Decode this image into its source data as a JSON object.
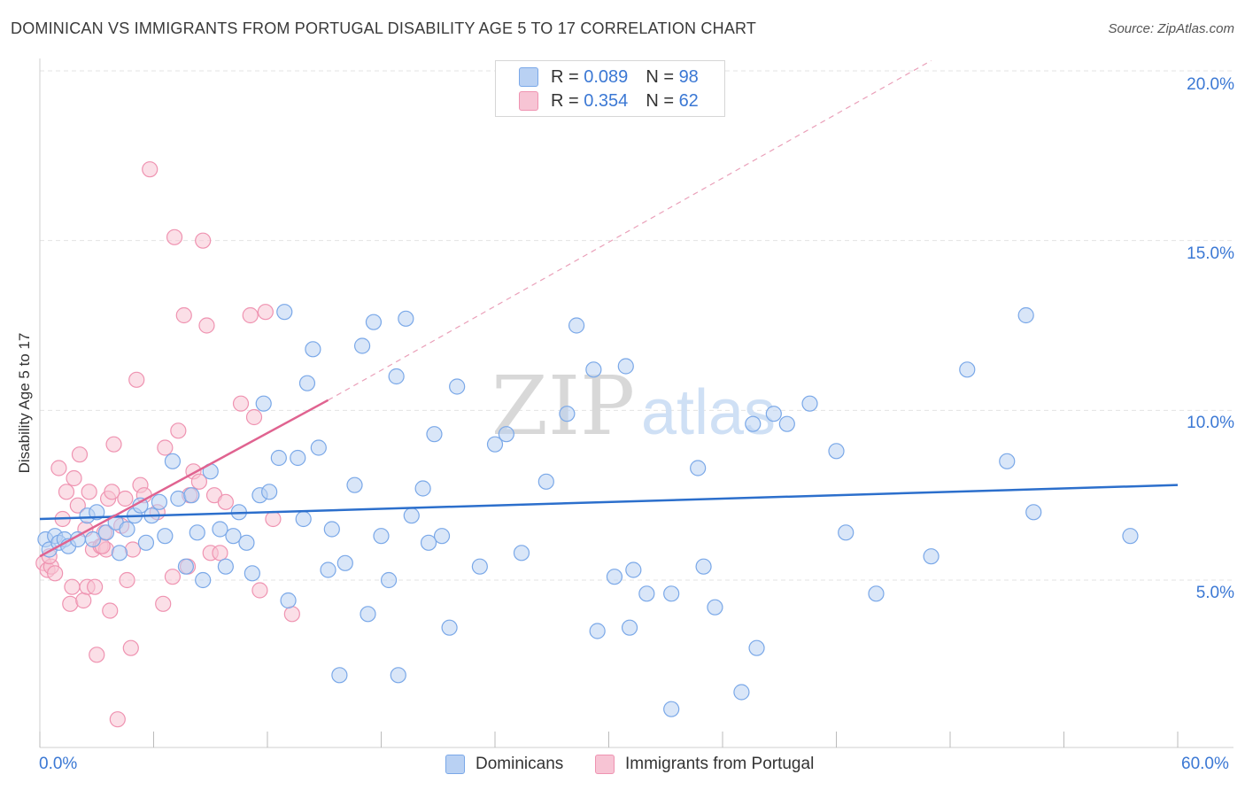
{
  "title": "DOMINICAN VS IMMIGRANTS FROM PORTUGAL DISABILITY AGE 5 TO 17 CORRELATION CHART",
  "source": "Source: ZipAtlas.com",
  "legend_top": {
    "r_label": "R =",
    "n_label": "N =",
    "series1_r": "0.089",
    "series1_n": "98",
    "series2_r": "0.354",
    "series2_n": "62"
  },
  "legend_bottom": {
    "series1": "Dominicans",
    "series2": "Immigrants from Portugal"
  },
  "axes": {
    "ylabel": "Disability Age 5 to 17",
    "y_ticks": [
      "5.0%",
      "10.0%",
      "15.0%",
      "20.0%"
    ],
    "x_min_label": "0.0%",
    "x_max_label": "60.0%"
  },
  "colors": {
    "blue": "#7aa8e8",
    "blue_fill": "#b9d1f3",
    "blue_line": "#2c6fcc",
    "pink": "#ef93b1",
    "pink_fill": "#f7c4d4",
    "pink_line": "#e06390",
    "axis_text": "#3b78d4"
  },
  "chart_data": {
    "type": "scatter",
    "title": "DOMINICAN VS IMMIGRANTS FROM PORTUGAL DISABILITY AGE 5 TO 17 CORRELATION CHART",
    "xlabel": "",
    "ylabel": "Disability Age 5 to 17",
    "xlim": [
      0,
      60
    ],
    "ylim": [
      0,
      20.5
    ],
    "series": [
      {
        "name": "Dominicans",
        "R": 0.089,
        "N": 98,
        "trend": {
          "x0": 0,
          "y0": 6.8,
          "x1": 60,
          "y1": 7.8
        },
        "points": [
          [
            0.3,
            6.2
          ],
          [
            0.5,
            5.9
          ],
          [
            0.8,
            6.3
          ],
          [
            1.0,
            6.1
          ],
          [
            1.3,
            6.2
          ],
          [
            1.5,
            6.0
          ],
          [
            2.0,
            6.2
          ],
          [
            2.5,
            6.9
          ],
          [
            2.8,
            6.2
          ],
          [
            3.0,
            7.0
          ],
          [
            3.5,
            6.4
          ],
          [
            4.0,
            6.7
          ],
          [
            4.2,
            5.8
          ],
          [
            4.6,
            6.5
          ],
          [
            5.0,
            6.9
          ],
          [
            5.3,
            7.2
          ],
          [
            5.6,
            6.1
          ],
          [
            5.9,
            6.9
          ],
          [
            6.3,
            7.3
          ],
          [
            6.6,
            6.3
          ],
          [
            7.0,
            8.5
          ],
          [
            7.3,
            7.4
          ],
          [
            7.7,
            5.4
          ],
          [
            8.0,
            7.5
          ],
          [
            8.3,
            6.4
          ],
          [
            8.6,
            5.0
          ],
          [
            9.0,
            8.2
          ],
          [
            9.5,
            6.5
          ],
          [
            9.8,
            5.4
          ],
          [
            10.2,
            6.3
          ],
          [
            10.5,
            7.0
          ],
          [
            10.9,
            6.1
          ],
          [
            11.2,
            5.2
          ],
          [
            11.6,
            7.5
          ],
          [
            11.8,
            10.2
          ],
          [
            12.1,
            7.6
          ],
          [
            12.6,
            8.6
          ],
          [
            12.9,
            12.9
          ],
          [
            13.1,
            4.4
          ],
          [
            13.6,
            8.6
          ],
          [
            13.9,
            6.8
          ],
          [
            14.1,
            10.8
          ],
          [
            14.4,
            11.8
          ],
          [
            14.7,
            8.9
          ],
          [
            15.2,
            5.3
          ],
          [
            15.4,
            6.5
          ],
          [
            15.8,
            2.2
          ],
          [
            16.1,
            5.5
          ],
          [
            16.6,
            7.8
          ],
          [
            17.0,
            11.9
          ],
          [
            17.3,
            4.0
          ],
          [
            17.6,
            12.6
          ],
          [
            18.0,
            6.3
          ],
          [
            18.4,
            5.0
          ],
          [
            18.8,
            11.0
          ],
          [
            18.9,
            2.2
          ],
          [
            19.3,
            12.7
          ],
          [
            19.6,
            6.9
          ],
          [
            20.2,
            7.7
          ],
          [
            20.5,
            6.1
          ],
          [
            20.8,
            9.3
          ],
          [
            21.2,
            6.3
          ],
          [
            21.6,
            3.6
          ],
          [
            22.0,
            10.7
          ],
          [
            23.2,
            5.4
          ],
          [
            24.0,
            9.0
          ],
          [
            24.6,
            9.3
          ],
          [
            25.4,
            5.8
          ],
          [
            26.7,
            7.9
          ],
          [
            27.8,
            9.9
          ],
          [
            28.3,
            12.5
          ],
          [
            29.2,
            11.2
          ],
          [
            29.4,
            3.5
          ],
          [
            30.3,
            5.1
          ],
          [
            30.9,
            11.3
          ],
          [
            31.1,
            3.6
          ],
          [
            31.3,
            5.3
          ],
          [
            32.0,
            4.6
          ],
          [
            33.3,
            4.6
          ],
          [
            34.7,
            8.3
          ],
          [
            35.0,
            5.4
          ],
          [
            35.6,
            4.2
          ],
          [
            37.0,
            1.7
          ],
          [
            37.6,
            9.6
          ],
          [
            37.8,
            3.0
          ],
          [
            38.7,
            9.9
          ],
          [
            39.4,
            9.6
          ],
          [
            40.6,
            10.2
          ],
          [
            42.0,
            8.8
          ],
          [
            42.5,
            6.4
          ],
          [
            44.1,
            4.6
          ],
          [
            47.0,
            5.7
          ],
          [
            48.9,
            11.2
          ],
          [
            51.0,
            8.5
          ],
          [
            52.0,
            12.8
          ],
          [
            52.4,
            7.0
          ],
          [
            33.3,
            1.2
          ],
          [
            57.5,
            6.3
          ]
        ]
      },
      {
        "name": "Immigrants from Portugal",
        "R": 0.354,
        "N": 62,
        "trend": {
          "x0": 0,
          "y0": 5.7,
          "x1": 15.2,
          "y1": 10.3,
          "dash_to_x": 47,
          "dash_to_y": 20.3
        },
        "points": [
          [
            0.2,
            5.5
          ],
          [
            0.4,
            5.3
          ],
          [
            0.6,
            5.4
          ],
          [
            0.8,
            5.2
          ],
          [
            1.0,
            8.3
          ],
          [
            1.2,
            6.8
          ],
          [
            1.4,
            7.6
          ],
          [
            1.6,
            4.3
          ],
          [
            1.7,
            4.8
          ],
          [
            1.8,
            8.0
          ],
          [
            2.0,
            7.2
          ],
          [
            2.1,
            8.7
          ],
          [
            2.3,
            4.4
          ],
          [
            2.4,
            6.5
          ],
          [
            2.5,
            4.8
          ],
          [
            2.6,
            7.6
          ],
          [
            2.8,
            5.9
          ],
          [
            2.9,
            4.8
          ],
          [
            3.0,
            2.8
          ],
          [
            3.2,
            6.0
          ],
          [
            3.4,
            6.4
          ],
          [
            3.5,
            5.9
          ],
          [
            3.6,
            7.4
          ],
          [
            3.7,
            4.1
          ],
          [
            3.8,
            7.6
          ],
          [
            3.9,
            9.0
          ],
          [
            4.1,
            0.9
          ],
          [
            4.3,
            6.6
          ],
          [
            4.5,
            7.4
          ],
          [
            4.6,
            5.0
          ],
          [
            4.8,
            3.0
          ],
          [
            4.9,
            5.9
          ],
          [
            5.1,
            10.9
          ],
          [
            5.3,
            7.8
          ],
          [
            5.5,
            7.5
          ],
          [
            5.8,
            17.1
          ],
          [
            6.2,
            7.0
          ],
          [
            6.5,
            4.3
          ],
          [
            6.6,
            8.9
          ],
          [
            7.0,
            5.1
          ],
          [
            7.1,
            15.1
          ],
          [
            7.3,
            9.4
          ],
          [
            7.6,
            12.8
          ],
          [
            7.8,
            5.4
          ],
          [
            7.9,
            7.5
          ],
          [
            8.1,
            8.2
          ],
          [
            8.4,
            7.9
          ],
          [
            8.6,
            15.0
          ],
          [
            8.8,
            12.5
          ],
          [
            9.0,
            5.8
          ],
          [
            9.2,
            7.5
          ],
          [
            9.5,
            5.8
          ],
          [
            9.8,
            7.3
          ],
          [
            10.6,
            10.2
          ],
          [
            11.1,
            12.8
          ],
          [
            11.3,
            9.8
          ],
          [
            11.6,
            4.7
          ],
          [
            11.9,
            12.9
          ],
          [
            12.3,
            6.8
          ],
          [
            13.3,
            4.0
          ],
          [
            0.5,
            5.7
          ],
          [
            3.3,
            6.0
          ]
        ]
      }
    ]
  }
}
